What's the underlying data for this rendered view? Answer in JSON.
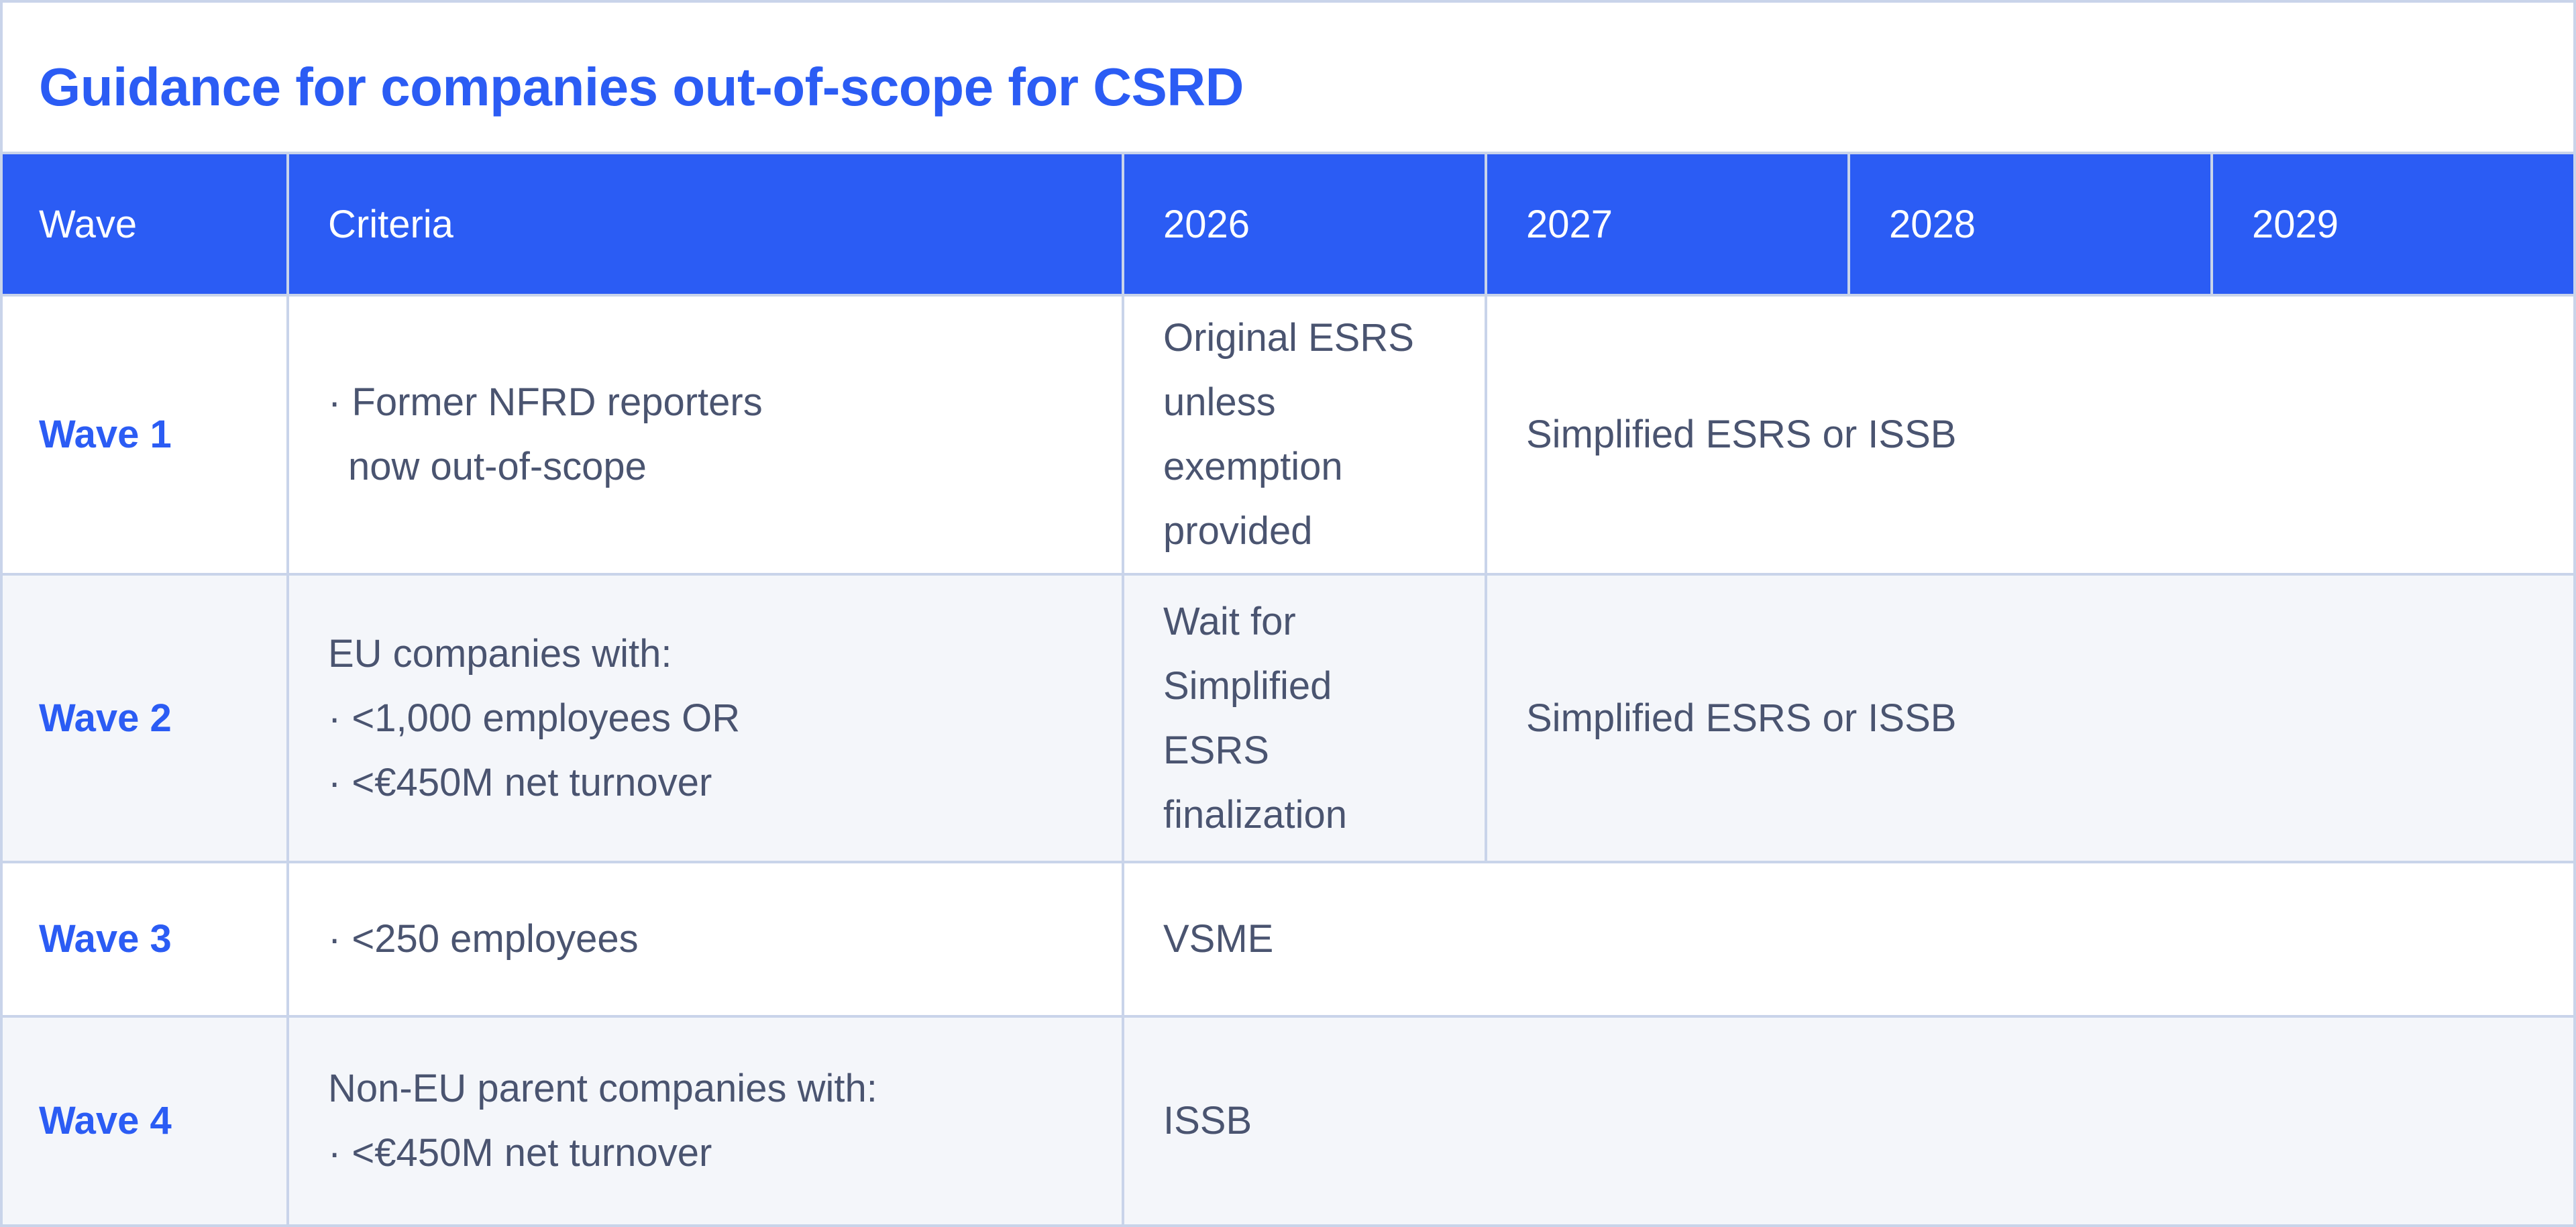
{
  "title": "Guidance for companies out-of-scope for CSRD",
  "headers": {
    "wave": "Wave",
    "criteria": "Criteria",
    "y2026": "2026",
    "y2027": "2027",
    "y2028": "2028",
    "y2029": "2029"
  },
  "rows": [
    {
      "wave": "Wave 1",
      "criteria": [
        "· Former NFRD reporters",
        "now out-of-scope"
      ],
      "y2026": [
        "Original ESRS",
        "unless",
        "exemption",
        "provided"
      ],
      "later": "Simplified ESRS or ISSB"
    },
    {
      "wave": "Wave 2",
      "criteria": [
        "EU companies with:",
        "· <1,000 employees OR",
        "· <€450M net turnover"
      ],
      "y2026": [
        "Wait for",
        "Simplified",
        "ESRS",
        "finalization"
      ],
      "later": "Simplified ESRS or ISSB"
    },
    {
      "wave": "Wave 3",
      "criteria": [
        "· <250 employees"
      ],
      "all_years": "VSME"
    },
    {
      "wave": "Wave 4",
      "criteria": [
        "Non-EU parent companies with:",
        "· <€450M net turnover"
      ],
      "all_years": "ISSB"
    }
  ]
}
